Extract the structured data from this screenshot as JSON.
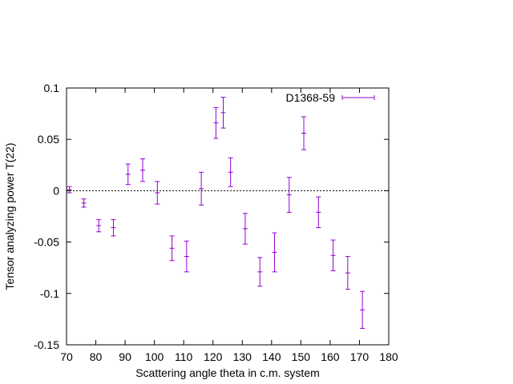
{
  "chart_data": {
    "type": "scatter",
    "title": "",
    "xlabel": "Scattering angle theta in c.m. system",
    "ylabel": "Tensor analyzing power T(22)",
    "xlim": [
      70,
      180
    ],
    "ylim": [
      -0.15,
      0.1
    ],
    "x_ticks": [
      70,
      80,
      90,
      100,
      110,
      120,
      130,
      140,
      150,
      160,
      170,
      180
    ],
    "x_tick_labels": [
      "70",
      "80",
      "90",
      "100",
      "110",
      "120",
      "130",
      "140",
      "150",
      "160",
      "170",
      "180"
    ],
    "y_ticks": [
      -0.15,
      -0.1,
      -0.05,
      0,
      0.05,
      0.1
    ],
    "y_tick_labels": [
      "-0.15",
      "-0.1",
      "-0.05",
      "0",
      "0.05",
      "0.1"
    ],
    "zero_line": true,
    "grid": false,
    "legend_position": "top-right",
    "series": [
      {
        "name": "D1368-59",
        "color": "#9400d3",
        "points": [
          {
            "x": 71.0,
            "y": 0.001,
            "err": 0.003
          },
          {
            "x": 75.9,
            "y": -0.012,
            "err": 0.004
          },
          {
            "x": 81.0,
            "y": -0.034,
            "err": 0.006
          },
          {
            "x": 86.0,
            "y": -0.036,
            "err": 0.008
          },
          {
            "x": 91.0,
            "y": 0.016,
            "err": 0.01
          },
          {
            "x": 96.0,
            "y": 0.02,
            "err": 0.011
          },
          {
            "x": 101.0,
            "y": -0.002,
            "err": 0.011
          },
          {
            "x": 106.0,
            "y": -0.056,
            "err": 0.012
          },
          {
            "x": 111.0,
            "y": -0.064,
            "err": 0.015
          },
          {
            "x": 116.0,
            "y": 0.002,
            "err": 0.016
          },
          {
            "x": 121.0,
            "y": 0.066,
            "err": 0.015
          },
          {
            "x": 123.5,
            "y": 0.076,
            "err": 0.015
          },
          {
            "x": 126.0,
            "y": 0.018,
            "err": 0.014
          },
          {
            "x": 131.0,
            "y": -0.037,
            "err": 0.015
          },
          {
            "x": 136.0,
            "y": -0.079,
            "err": 0.014
          },
          {
            "x": 141.0,
            "y": -0.06,
            "err": 0.019
          },
          {
            "x": 146.0,
            "y": -0.004,
            "err": 0.017
          },
          {
            "x": 151.0,
            "y": 0.056,
            "err": 0.016
          },
          {
            "x": 156.0,
            "y": -0.021,
            "err": 0.015
          },
          {
            "x": 161.0,
            "y": -0.063,
            "err": 0.015
          },
          {
            "x": 166.0,
            "y": -0.08,
            "err": 0.016
          },
          {
            "x": 171.0,
            "y": -0.116,
            "err": 0.018
          }
        ]
      }
    ]
  }
}
